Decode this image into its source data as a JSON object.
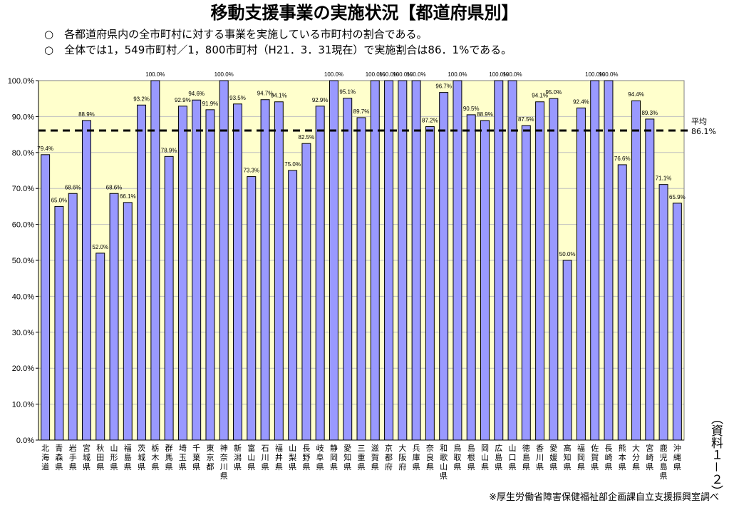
{
  "title": "移動支援事業の実施状況【都道府県別】",
  "notes": [
    "○　各都道府県内の全市町村に対する事業を実施している市町村の割合である。",
    "○　全体では1，549市町村／1，800市町村（H21．3．31現在）で実施割合は86．1%である。"
  ],
  "source": "※厚生労働省障害保健福祉部企画課自立支援振興室調べ",
  "side_label": "（資料１－２）",
  "colors": {
    "plot_bg": "#ffffcc",
    "bar_fill": "#9999ff",
    "bar_stroke": "#000000",
    "grid": "#c0c0c0",
    "average_line": "#000000"
  },
  "chart_data": {
    "type": "bar",
    "ylim": [
      0,
      100
    ],
    "yticks": [
      "0.0%",
      "10.0%",
      "20.0%",
      "30.0%",
      "40.0%",
      "50.0%",
      "60.0%",
      "70.0%",
      "80.0%",
      "90.0%",
      "100.0%"
    ],
    "grid": true,
    "categories": [
      "北海道",
      "青森県",
      "岩手県",
      "宮城県",
      "秋田県",
      "山形県",
      "福島県",
      "茨城県",
      "栃木県",
      "群馬県",
      "埼玉県",
      "千葉県",
      "東京都",
      "神奈川県",
      "新潟県",
      "富山県",
      "石川県",
      "福井県",
      "山梨県",
      "長野県",
      "岐阜県",
      "静岡県",
      "愛知県",
      "三重県",
      "滋賀県",
      "京都府",
      "大阪府",
      "兵庫県",
      "奈良県",
      "和歌山県",
      "鳥取県",
      "島根県",
      "岡山県",
      "広島県",
      "山口県",
      "徳島県",
      "香川県",
      "愛媛県",
      "高知県",
      "福岡県",
      "佐賀県",
      "長崎県",
      "熊本県",
      "大分県",
      "宮崎県",
      "鹿児島県",
      "沖縄県"
    ],
    "values": [
      79.4,
      65.0,
      68.6,
      88.9,
      52.0,
      68.6,
      66.1,
      93.2,
      100.0,
      78.9,
      92.9,
      94.6,
      91.9,
      100.0,
      93.5,
      73.3,
      94.7,
      94.1,
      75.0,
      82.5,
      92.9,
      100.0,
      95.1,
      89.7,
      100.0,
      100.0,
      100.0,
      100.0,
      87.2,
      96.7,
      100.0,
      90.5,
      88.9,
      100.0,
      100.0,
      87.5,
      94.1,
      95.0,
      50.0,
      92.4,
      100.0,
      100.0,
      76.6,
      94.4,
      89.3,
      71.1,
      65.9
    ],
    "data_labels": [
      "79.4%",
      "65.0%",
      "68.6%",
      "88.9%",
      "52.0%",
      "68.6%",
      "66.1%",
      "93.2%",
      "100.0%",
      "78.9%",
      "92.9%",
      "94.6%",
      "91.9%",
      "100.0%",
      "93.5%",
      "73.3%",
      "94.7%",
      "94.1%",
      "75.0%",
      "82.5%",
      "92.9%",
      "100.0%",
      "95.1%",
      "89.7%",
      "100.0%",
      "100.0%",
      "100.0%",
      "100.0%",
      "87.2%",
      "96.7%",
      "100.0%",
      "90.5%",
      "88.9%",
      "100.0%",
      "100.0%",
      "87.5%",
      "94.1%",
      "95.0%",
      "50.0%",
      "92.4%",
      "100.0%",
      "100.0%",
      "76.6%",
      "94.4%",
      "89.3%",
      "71.1%",
      "65.9%"
    ],
    "average": {
      "value": 86.1,
      "label": "平均",
      "value_label": "86.1%"
    }
  }
}
